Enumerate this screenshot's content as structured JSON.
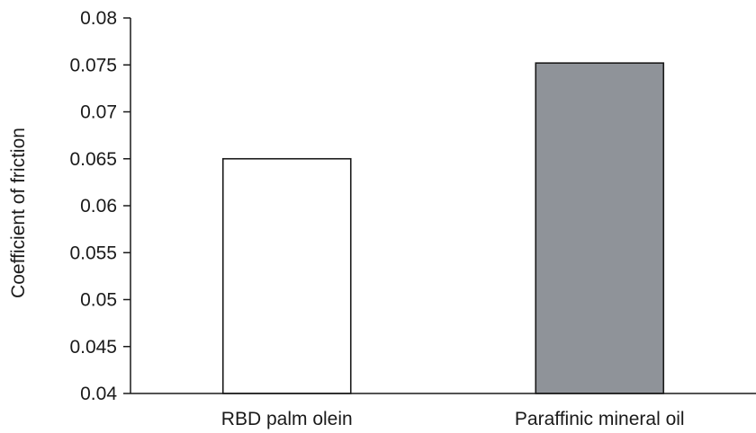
{
  "chart_data": {
    "type": "bar",
    "categories": [
      "RBD palm olein",
      "Paraffinic mineral oil"
    ],
    "values": [
      0.065,
      0.0752
    ],
    "bar_colors": [
      "#ffffff",
      "#8f9399"
    ],
    "ylabel": "Coefficient of friction",
    "xlabel": "",
    "ylim": [
      0.04,
      0.08
    ],
    "yticks": [
      "0.04",
      "0.045",
      "0.05",
      "0.055",
      "0.06",
      "0.065",
      "0.07",
      "0.075",
      "0.08"
    ],
    "grid": false
  }
}
